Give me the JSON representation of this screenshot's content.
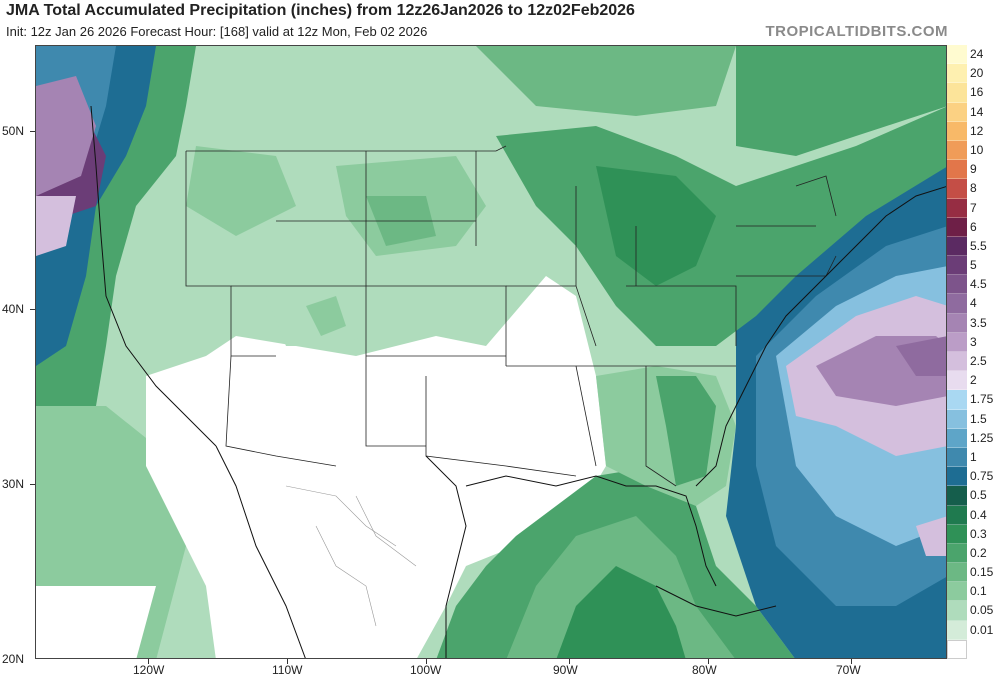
{
  "header": {
    "title": "JMA Total Accumulated Precipitation (inches) from 12z26Jan2026 to 12z02Feb2026",
    "subtitle": "Init: 12z Jan 26 2026   Forecast Hour: [168]   valid at 12z Mon, Feb 02 2026",
    "brand": "TROPICALTIDBITS.COM"
  },
  "map": {
    "lat_labels": [
      "50N",
      "40N",
      "30N",
      "20N"
    ],
    "lon_labels": [
      "120W",
      "110W",
      "100W",
      "90W",
      "80W",
      "70W"
    ]
  },
  "legend": {
    "items": [
      {
        "label": "24",
        "color": "#fffbd0"
      },
      {
        "label": "20",
        "color": "#fef0b0"
      },
      {
        "label": "16",
        "color": "#fce49a"
      },
      {
        "label": "14",
        "color": "#fbd183"
      },
      {
        "label": "12",
        "color": "#f8b968"
      },
      {
        "label": "10",
        "color": "#f09c58"
      },
      {
        "label": "9",
        "color": "#e2764a"
      },
      {
        "label": "8",
        "color": "#c44e46"
      },
      {
        "label": "7",
        "color": "#962d43"
      },
      {
        "label": "6",
        "color": "#6e1f47"
      },
      {
        "label": "5.5",
        "color": "#5b2a62"
      },
      {
        "label": "5",
        "color": "#6b3d77"
      },
      {
        "label": "4.5",
        "color": "#7d548b"
      },
      {
        "label": "4",
        "color": "#8f6b9f"
      },
      {
        "label": "3.5",
        "color": "#a584b3"
      },
      {
        "label": "3",
        "color": "#bb9dc7"
      },
      {
        "label": "2.5",
        "color": "#d4bfdd"
      },
      {
        "label": "2",
        "color": "#e8dcef"
      },
      {
        "label": "1.75",
        "color": "#a9d8f2"
      },
      {
        "label": "1.5",
        "color": "#86c0df"
      },
      {
        "label": "1.25",
        "color": "#5ea5c8"
      },
      {
        "label": "1",
        "color": "#3f89ae"
      },
      {
        "label": "0.75",
        "color": "#1e6d93"
      },
      {
        "label": "0.5",
        "color": "#155e4c"
      },
      {
        "label": "0.4",
        "color": "#1f7a4f"
      },
      {
        "label": "0.3",
        "color": "#2f9157"
      },
      {
        "label": "0.2",
        "color": "#4ba46c"
      },
      {
        "label": "0.15",
        "color": "#6cb884"
      },
      {
        "label": "0.1",
        "color": "#8ccb9e"
      },
      {
        "label": "0.05",
        "color": "#afdcbc"
      },
      {
        "label": "0.01",
        "color": "#d4ecd9"
      },
      {
        "label": "",
        "color": "#ffffff"
      }
    ]
  }
}
